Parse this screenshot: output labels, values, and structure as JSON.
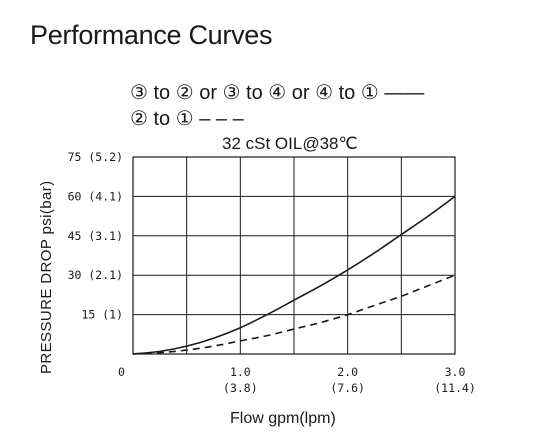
{
  "page": {
    "title": "Performance Curves"
  },
  "legend": {
    "line1": "③ to ② or ③ to ④ or ④ to ① ——",
    "line2": "② to ① – – –"
  },
  "chart_data": {
    "type": "line",
    "title": "",
    "subtitle": "32 cSt OIL@38℃",
    "xlabel": "Flow gpm(lpm)",
    "ylabel": "PRESSURE DROP psi(bar)",
    "xlim": [
      0,
      3.0
    ],
    "ylim": [
      0,
      75
    ],
    "grid": true,
    "xticks": [
      {
        "value": 0,
        "label": "0",
        "sublabel": ""
      },
      {
        "value": 1.0,
        "label": "1.0",
        "sublabel": "(3.8)"
      },
      {
        "value": 2.0,
        "label": "2.0",
        "sublabel": "(7.6)"
      },
      {
        "value": 3.0,
        "label": "3.0",
        "sublabel": "(11.4)"
      }
    ],
    "yticks": [
      {
        "value": 15,
        "label": "15 (1)"
      },
      {
        "value": 30,
        "label": "30 (2.1)"
      },
      {
        "value": 45,
        "label": "45 (3.1)"
      },
      {
        "value": 60,
        "label": "60 (4.1)"
      },
      {
        "value": 75,
        "label": "75 (5.2)"
      }
    ],
    "series": [
      {
        "legend": "③ to ② or ③ to ④ or ④ to ①",
        "style": "solid",
        "color": "#1a1a1a",
        "x": [
          0,
          0.25,
          0.5,
          0.75,
          1.0,
          1.25,
          1.5,
          1.75,
          2.0,
          2.25,
          2.5,
          2.75,
          3.0
        ],
        "y": [
          0,
          1,
          3,
          6,
          10,
          15,
          20.5,
          26,
          32,
          38.5,
          45.5,
          52.5,
          60
        ]
      },
      {
        "legend": "② to ①",
        "style": "dashed",
        "color": "#1a1a1a",
        "x": [
          0,
          0.25,
          0.5,
          0.75,
          1.0,
          1.25,
          1.5,
          1.75,
          2.0,
          2.25,
          2.5,
          2.75,
          3.0
        ],
        "y": [
          0,
          0.5,
          1.5,
          3,
          5,
          7,
          9.5,
          12,
          15,
          18.5,
          22,
          26,
          30
        ]
      }
    ]
  }
}
